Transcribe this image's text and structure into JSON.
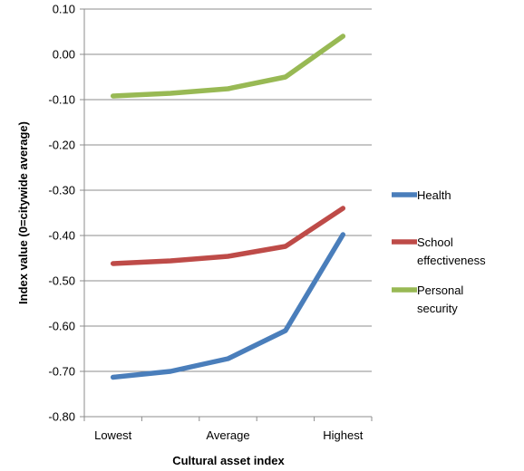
{
  "chart_data": {
    "type": "line",
    "categories": [
      "Lowest",
      "",
      "Average",
      "",
      "Highest"
    ],
    "x_tick_labels": [
      "Lowest",
      "Average",
      "Highest"
    ],
    "xlabel": "Cultural asset index",
    "ylabel": "Index value (0=citywide average)",
    "ylim": [
      -0.8,
      0.1
    ],
    "y_ticks": [
      "0.10",
      "0.00",
      "-0.10",
      "-0.20",
      "-0.30",
      "-0.40",
      "-0.50",
      "-0.60",
      "-0.70",
      "-0.80"
    ],
    "grid": true,
    "legend_position": "right",
    "series": [
      {
        "name": "Health",
        "color": "#4a7ebb",
        "values": [
          -0.713,
          -0.7,
          -0.672,
          -0.61,
          -0.398
        ]
      },
      {
        "name": "School effectiveness",
        "legend_lines": [
          "School",
          "effectiveness"
        ],
        "color": "#be4b48",
        "values": [
          -0.462,
          -0.456,
          -0.446,
          -0.424,
          -0.34
        ]
      },
      {
        "name": "Personal security",
        "legend_lines": [
          "Personal",
          "security"
        ],
        "color": "#98b954",
        "values": [
          -0.092,
          -0.086,
          -0.076,
          -0.05,
          0.04
        ]
      }
    ]
  }
}
